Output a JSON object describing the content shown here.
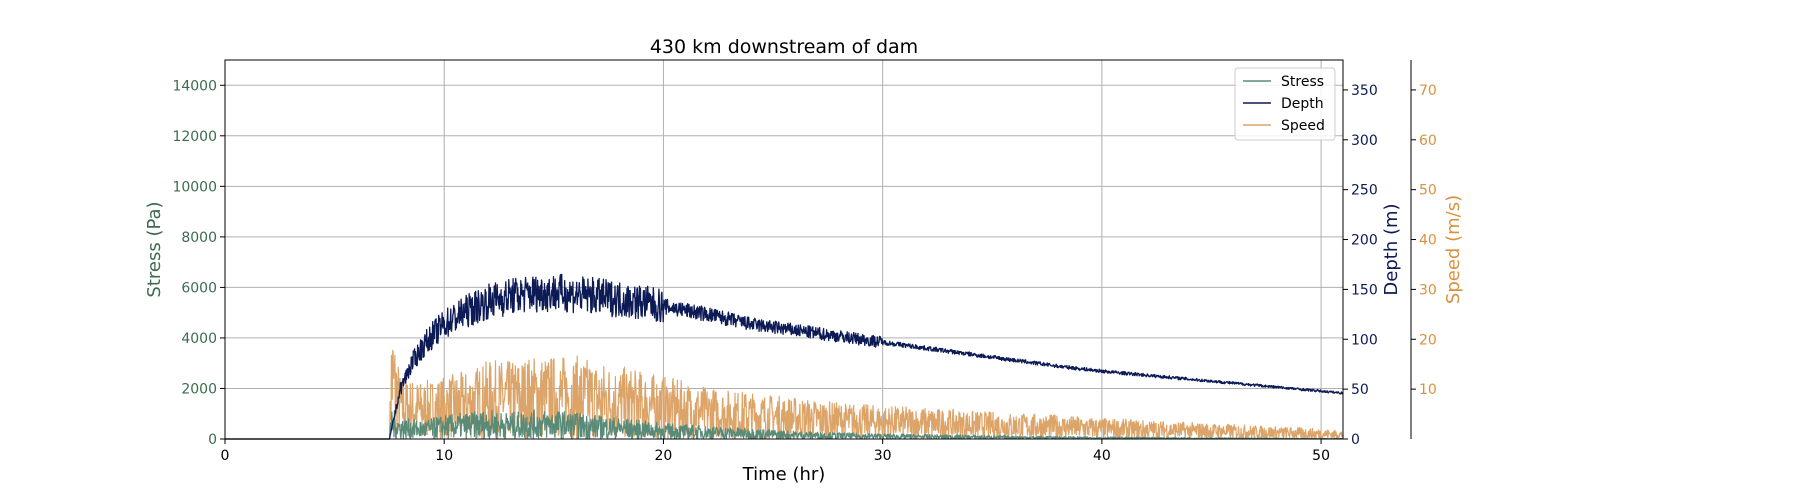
{
  "chart_data": {
    "type": "line",
    "title": "430 km downstream of dam",
    "xlabel": "Time (hr)",
    "xlim": [
      0,
      51
    ],
    "x_ticks": [
      0,
      10,
      20,
      30,
      40,
      50
    ],
    "grid": true,
    "legend_position": "top-right",
    "axes": {
      "stress": {
        "label": "Stress (Pa)",
        "ylim": [
          0,
          15000
        ],
        "ticks": [
          0,
          2000,
          4000,
          6000,
          8000,
          10000,
          12000,
          14000
        ],
        "color": "#3d6b4f"
      },
      "depth": {
        "label": "Depth (m)",
        "ylim": [
          0,
          380
        ],
        "ticks": [
          0,
          50,
          100,
          150,
          200,
          250,
          300,
          350
        ],
        "color": "#0c1a55"
      },
      "speed": {
        "label": "Speed (m/s)",
        "ylim": [
          0,
          76
        ],
        "ticks": [
          10,
          20,
          30,
          40,
          50,
          60,
          70
        ],
        "color": "#d9913f"
      }
    },
    "series": [
      {
        "name": "Stress",
        "axis": "stress",
        "color": "#5a8a78",
        "x": [
          0,
          7.5,
          7.6,
          8,
          9,
          10,
          11,
          12,
          13,
          14,
          15,
          16,
          17,
          18,
          19,
          20,
          22,
          24,
          26,
          28,
          30,
          33,
          36,
          40,
          45,
          51
        ],
        "y": [
          0,
          0,
          600,
          400,
          350,
          450,
          500,
          550,
          500,
          550,
          550,
          500,
          450,
          400,
          350,
          300,
          250,
          200,
          150,
          120,
          100,
          80,
          60,
          40,
          25,
          10
        ]
      },
      {
        "name": "Depth",
        "axis": "depth",
        "color": "#0c1a55",
        "x": [
          0,
          7.5,
          7.7,
          8,
          8.5,
          9,
          9.5,
          10,
          11,
          12,
          13,
          14,
          15,
          16,
          17,
          18,
          19,
          20,
          21,
          22,
          23,
          24,
          25,
          26,
          27,
          28,
          30,
          32,
          35,
          38,
          40,
          42,
          45,
          48,
          51
        ],
        "y": [
          0,
          0,
          20,
          50,
          75,
          92,
          105,
          115,
          128,
          138,
          143,
          146,
          147,
          145,
          143,
          140,
          137,
          133,
          129,
          125,
          120,
          115,
          112,
          109,
          106,
          103,
          97,
          91,
          82,
          73,
          68,
          64,
          58,
          52,
          46
        ]
      },
      {
        "name": "Speed",
        "axis": "speed",
        "color": "#dca468",
        "x": [
          0,
          7.5,
          7.6,
          8,
          9,
          10,
          11,
          12,
          13,
          14,
          15,
          16,
          17,
          18,
          19,
          20,
          21,
          22,
          23,
          24,
          25,
          26,
          28,
          30,
          32,
          34,
          36,
          38,
          40,
          42,
          45,
          48,
          50,
          51
        ],
        "y": [
          0,
          0,
          12,
          6,
          5.5,
          6,
          6.5,
          7.5,
          7.5,
          8,
          8,
          8,
          7.5,
          7,
          6.5,
          6,
          5.5,
          5,
          4.7,
          4.5,
          4.2,
          4,
          3.5,
          3.2,
          3,
          2.7,
          2.5,
          2.3,
          2,
          1.8,
          1.5,
          1.2,
          1,
          0.8
        ]
      }
    ]
  }
}
